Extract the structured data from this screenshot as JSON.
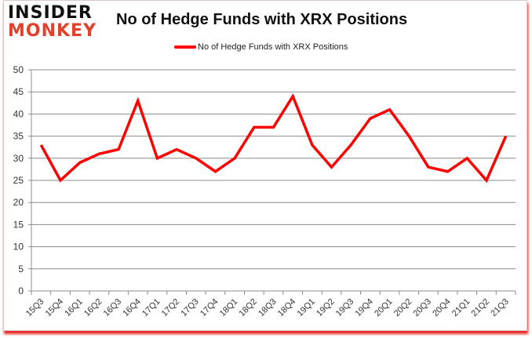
{
  "brand": {
    "line1": "INSIDER",
    "line2": "MONKEY"
  },
  "colors": {
    "series": "#ff0000",
    "grid": "#8c8c8c",
    "logo_red": "#e3412b"
  },
  "chart_data": {
    "type": "line",
    "title": "No of Hedge Funds with XRX Positions",
    "xlabel": "",
    "ylabel": "",
    "ylim": [
      0,
      50
    ],
    "yticks": [
      0,
      5,
      10,
      15,
      20,
      25,
      30,
      35,
      40,
      45,
      50
    ],
    "grid": true,
    "legend_position": "top",
    "categories": [
      "15Q3",
      "15Q4",
      "16Q1",
      "16Q2",
      "16Q3",
      "16Q4",
      "17Q1",
      "17Q2",
      "17Q3",
      "17Q4",
      "18Q1",
      "18Q2",
      "18Q3",
      "18Q4",
      "19Q1",
      "19Q2",
      "19Q3",
      "19Q4",
      "20Q1",
      "20Q2",
      "20Q3",
      "20Q4",
      "21Q1",
      "21Q2",
      "21Q3"
    ],
    "series": [
      {
        "name": "No of Hedge Funds with XRX Positions",
        "values": [
          33,
          25,
          29,
          31,
          32,
          43,
          30,
          32,
          30,
          27,
          30,
          37,
          37,
          44,
          33,
          28,
          33,
          39,
          41,
          35,
          28,
          27,
          30,
          25,
          35
        ]
      }
    ]
  }
}
